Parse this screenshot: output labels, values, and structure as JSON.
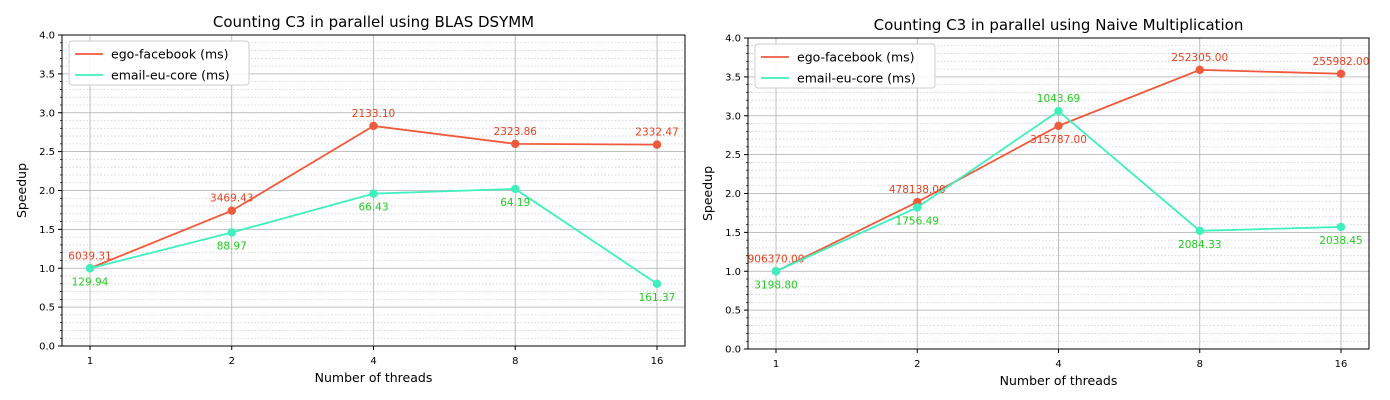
{
  "chart_data": [
    {
      "type": "line",
      "title": "Counting C3 in parallel using BLAS DSYMM",
      "xlabel": "Number of threads",
      "ylabel": "Speedup",
      "categories": [
        "1",
        "2",
        "4",
        "8",
        "16"
      ],
      "ylim": [
        0,
        4.0
      ],
      "yticks": [
        "0.0",
        "0.5",
        "1.0",
        "1.5",
        "2.0",
        "2.5",
        "3.0",
        "3.5",
        "4.0"
      ],
      "grid": true,
      "legend_position": "top-left",
      "series": [
        {
          "name": "ego-facebook (ms)",
          "color": "#f05a3c",
          "label_color": "#e8401f",
          "values": [
            1.0,
            1.74,
            2.83,
            2.6,
            2.59
          ],
          "labels": [
            "6039.31",
            "3469.43",
            "2133.10",
            "2323.86",
            "2332.47"
          ],
          "label_pos": [
            "above",
            "above",
            "above",
            "above",
            "above"
          ]
        },
        {
          "name": "email-eu-core (ms)",
          "color": "#3ef0bd",
          "label_color": "#22cc22",
          "values": [
            1.0,
            1.46,
            1.96,
            2.02,
            0.8
          ],
          "labels": [
            "129.94",
            "88.97",
            "66.43",
            "64.19",
            "161.37"
          ],
          "label_pos": [
            "below",
            "below",
            "below",
            "below",
            "below"
          ]
        }
      ]
    },
    {
      "type": "line",
      "title": "Counting C3 in parallel using Naive Multiplication",
      "xlabel": "Number of threads",
      "ylabel": "Speedup",
      "categories": [
        "1",
        "2",
        "4",
        "8",
        "16"
      ],
      "ylim": [
        0,
        4.0
      ],
      "yticks": [
        "0.0",
        "0.5",
        "1.0",
        "1.5",
        "2.0",
        "2.5",
        "3.0",
        "3.5",
        "4.0"
      ],
      "grid": true,
      "legend_position": "top-left",
      "series": [
        {
          "name": "ego-facebook (ms)",
          "color": "#f05a3c",
          "label_color": "#e8401f",
          "values": [
            1.0,
            1.89,
            2.87,
            3.59,
            3.54
          ],
          "labels": [
            "906370.00",
            "478138.00",
            "315787.00",
            "252305.00",
            "255982.00"
          ],
          "label_pos": [
            "above",
            "above",
            "below",
            "above",
            "above"
          ]
        },
        {
          "name": "email-eu-core (ms)",
          "color": "#3ef0bd",
          "label_color": "#22cc22",
          "values": [
            1.0,
            1.82,
            3.06,
            1.52,
            1.57
          ],
          "labels": [
            "3198.80",
            "1756.49",
            "1043.69",
            "2084.33",
            "2038.45"
          ],
          "label_pos": [
            "below",
            "below",
            "above",
            "below",
            "below"
          ]
        }
      ]
    }
  ]
}
